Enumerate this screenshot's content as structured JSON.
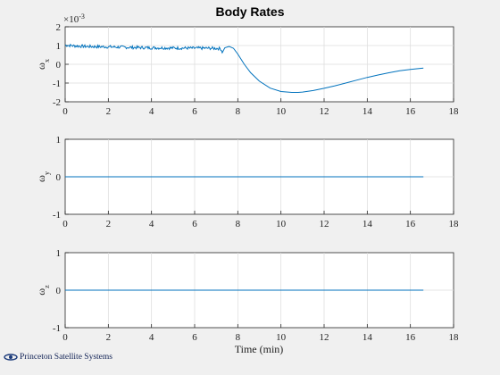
{
  "figure": {
    "title": "Body Rates",
    "xlabel": "Time (min)",
    "brand": "Princeton Satellite Systems",
    "line_color": "#0072BD",
    "background": "#f0f0f0"
  },
  "chart_data": [
    {
      "type": "line",
      "ylabel_base": "ω",
      "ylabel_sub": "x",
      "exponent_prefix": "×10",
      "exponent_power": "-3",
      "xlim": [
        0,
        18
      ],
      "ylim": [
        -2,
        2
      ],
      "xticks": [
        0,
        2,
        4,
        6,
        8,
        10,
        12,
        14,
        16,
        18
      ],
      "yticks": [
        -2,
        -1,
        0,
        1,
        2
      ],
      "grid": true,
      "series": [
        {
          "noisy_until": 7.3,
          "noise_amplitude": 0.08,
          "x": [
            0,
            0.5,
            1,
            2,
            3,
            4,
            5,
            6,
            6.5,
            7.0,
            7.2,
            7.3,
            7.4,
            7.6,
            7.8,
            8.0,
            8.3,
            8.6,
            9.0,
            9.5,
            10.0,
            10.5,
            10.8,
            11.0,
            11.5,
            12.0,
            12.5,
            13.0,
            13.5,
            14.0,
            14.5,
            15.0,
            15.5,
            16.0,
            16.6
          ],
          "y": [
            1.02,
            0.98,
            0.95,
            0.93,
            0.9,
            0.88,
            0.87,
            0.86,
            0.86,
            0.85,
            0.84,
            0.62,
            0.88,
            0.95,
            0.85,
            0.55,
            0.0,
            -0.45,
            -0.9,
            -1.27,
            -1.45,
            -1.5,
            -1.5,
            -1.48,
            -1.4,
            -1.28,
            -1.15,
            -1.0,
            -0.85,
            -0.7,
            -0.57,
            -0.45,
            -0.35,
            -0.27,
            -0.2
          ]
        }
      ]
    },
    {
      "type": "line",
      "ylabel_base": "ω",
      "ylabel_sub": "y",
      "xlim": [
        0,
        18
      ],
      "ylim": [
        -1,
        1
      ],
      "xticks": [
        0,
        2,
        4,
        6,
        8,
        10,
        12,
        14,
        16,
        18
      ],
      "yticks": [
        -1,
        0,
        1
      ],
      "grid": true,
      "series": [
        {
          "x": [
            0,
            16.6
          ],
          "y": [
            0,
            0
          ]
        }
      ]
    },
    {
      "type": "line",
      "ylabel_base": "ω",
      "ylabel_sub": "z",
      "xlim": [
        0,
        18
      ],
      "ylim": [
        -1,
        1
      ],
      "xticks": [
        0,
        2,
        4,
        6,
        8,
        10,
        12,
        14,
        16,
        18
      ],
      "yticks": [
        -1,
        0,
        1
      ],
      "grid": true,
      "series": [
        {
          "x": [
            0,
            16.6
          ],
          "y": [
            0,
            0
          ]
        }
      ]
    }
  ]
}
